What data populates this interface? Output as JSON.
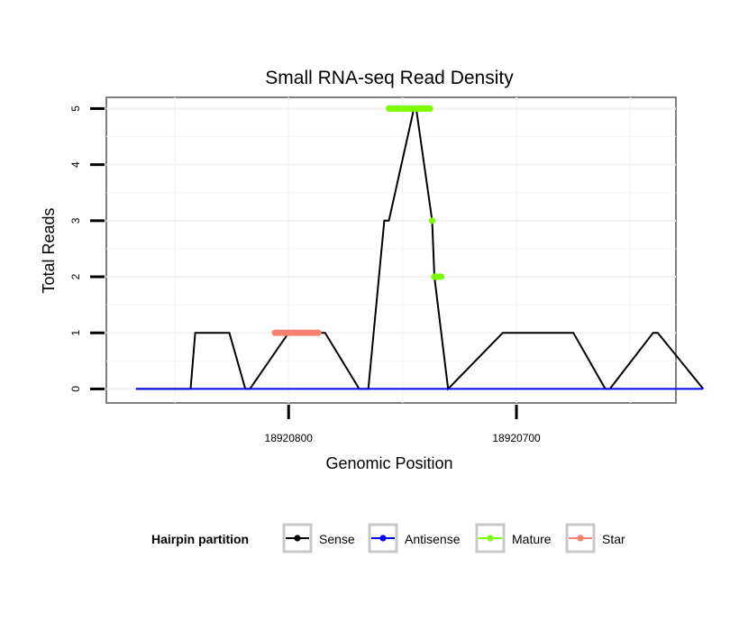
{
  "chart_data": {
    "type": "line",
    "title": "Small RNA-seq Read Density",
    "xlabel": "Genomic Position",
    "ylabel": "Total Reads",
    "x_reversed": true,
    "xlim": [
      18920880,
      18920630
    ],
    "ylim": [
      -0.25,
      5.2
    ],
    "xticks": [
      18920800,
      18920700
    ],
    "xtick_labels": [
      "18920800",
      "18920700"
    ],
    "yticks": [
      0,
      1,
      2,
      3,
      4,
      5
    ],
    "ytick_labels": [
      "0",
      "1",
      "2",
      "3",
      "4",
      "5"
    ],
    "grid": true,
    "legend": {
      "title": "Hairpin partition",
      "position": "bottom",
      "entries": [
        {
          "name": "Sense",
          "color": "#000000"
        },
        {
          "name": "Antisense",
          "color": "#0000ff"
        },
        {
          "name": "Mature",
          "color": "#7cfc00"
        },
        {
          "name": "Star",
          "color": "#fa8072"
        }
      ]
    },
    "series": [
      {
        "name": "Sense",
        "color": "#000000",
        "style": "line",
        "x": [
          18920867,
          18920843,
          18920841,
          18920826,
          18920819,
          18920817,
          18920800,
          18920784,
          18920769,
          18920765,
          18920758,
          18920756,
          18920745,
          18920744,
          18920737,
          18920736,
          18920730,
          18920706,
          18920675,
          18920661,
          18920659,
          18920640,
          18920638,
          18920618
        ],
        "y": [
          0,
          0,
          1,
          1,
          0,
          0,
          1,
          1,
          0,
          0,
          3,
          3,
          5,
          5,
          3,
          2,
          0,
          1,
          1,
          0,
          0,
          1,
          1,
          0
        ]
      },
      {
        "name": "Antisense",
        "color": "#0000ff",
        "style": "line",
        "x": [
          18920867,
          18920618
        ],
        "y": [
          0,
          0
        ]
      },
      {
        "name": "Mature",
        "color": "#7cfc00",
        "style": "points",
        "x": [
          18920756,
          18920755,
          18920754,
          18920753,
          18920752,
          18920751,
          18920750,
          18920749,
          18920748,
          18920747,
          18920746,
          18920745,
          18920744,
          18920743,
          18920742,
          18920741,
          18920740,
          18920739,
          18920738,
          18920737,
          18920736,
          18920735,
          18920734,
          18920733
        ],
        "y": [
          5,
          5,
          5,
          5,
          5,
          5,
          5,
          5,
          5,
          5,
          5,
          5,
          5,
          5,
          5,
          5,
          5,
          5,
          5,
          3,
          2,
          2,
          2,
          2
        ]
      },
      {
        "name": "Star",
        "color": "#fa8072",
        "style": "points",
        "x": [
          18920806,
          18920805,
          18920804,
          18920803,
          18920802,
          18920801,
          18920800,
          18920799,
          18920798,
          18920797,
          18920796,
          18920795,
          18920794,
          18920793,
          18920792,
          18920791,
          18920790,
          18920789,
          18920788,
          18920787
        ],
        "y": [
          1,
          1,
          1,
          1,
          1,
          1,
          1,
          1,
          1,
          1,
          1,
          1,
          1,
          1,
          1,
          1,
          1,
          1,
          1,
          1
        ]
      }
    ]
  }
}
